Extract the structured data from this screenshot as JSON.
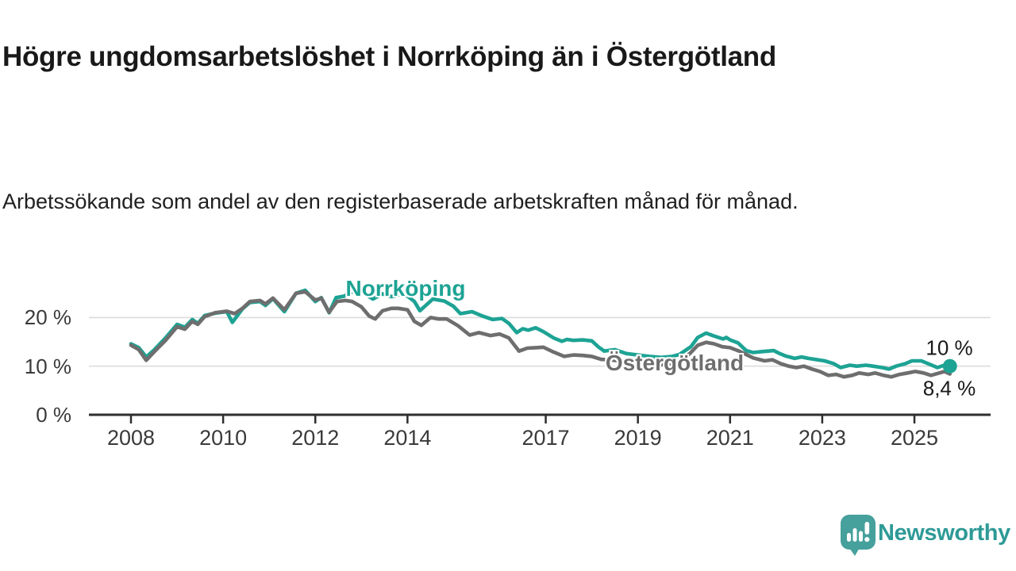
{
  "header": {
    "title": "Högre ungdomsarbetslöshet i Norrköping än i Östergötland",
    "subtitle": "Arbetssökande som andel av den registerbaserade arbetskraften månad för månad."
  },
  "chart_data": {
    "type": "line",
    "unit": "%",
    "grid_on": true,
    "legend_position": "inline-labels",
    "x_axis": {
      "ticks": [
        2008,
        2010,
        2012,
        2014,
        2017,
        2019,
        2021,
        2023,
        2025
      ],
      "range": [
        2008.0,
        2025.77
      ]
    },
    "y_axis": {
      "ticks": [
        {
          "value": 0,
          "label": "0 %"
        },
        {
          "value": 10,
          "label": "10 %"
        },
        {
          "value": 20,
          "label": "20 %"
        }
      ],
      "gridlines": [
        10,
        20
      ],
      "range": [
        0,
        27
      ]
    },
    "colors": {
      "norrkoping": "#1DA394",
      "ostergotland": "#6E6E6E",
      "gridline": "#DCDCDC",
      "axis": "#2E2E2E"
    },
    "series": [
      {
        "name": "Norrköping",
        "color": "#1DA394",
        "end_label": "10 %",
        "latest_value_pct": 10.0,
        "points": [
          [
            2008.0,
            14.6
          ],
          [
            2008.17,
            13.8
          ],
          [
            2008.33,
            11.9
          ],
          [
            2008.5,
            13.3
          ],
          [
            2008.75,
            15.8
          ],
          [
            2009.0,
            18.6
          ],
          [
            2009.17,
            18.0
          ],
          [
            2009.33,
            19.6
          ],
          [
            2009.45,
            18.8
          ],
          [
            2009.6,
            20.4
          ],
          [
            2009.83,
            20.9
          ],
          [
            2010.08,
            21.2
          ],
          [
            2010.2,
            19.0
          ],
          [
            2010.42,
            21.8
          ],
          [
            2010.58,
            23.1
          ],
          [
            2010.8,
            23.3
          ],
          [
            2010.92,
            22.5
          ],
          [
            2011.08,
            23.9
          ],
          [
            2011.33,
            21.2
          ],
          [
            2011.58,
            25.0
          ],
          [
            2011.78,
            25.6
          ],
          [
            2012.0,
            23.3
          ],
          [
            2012.13,
            24.1
          ],
          [
            2012.3,
            21.0
          ],
          [
            2012.45,
            24.1
          ],
          [
            2012.63,
            24.4
          ],
          [
            2012.9,
            25.8
          ],
          [
            2013.05,
            25.0
          ],
          [
            2013.25,
            23.8
          ],
          [
            2013.45,
            24.9
          ],
          [
            2013.65,
            24.3
          ],
          [
            2013.85,
            24.7
          ],
          [
            2014.0,
            24.4
          ],
          [
            2014.15,
            23.3
          ],
          [
            2014.27,
            21.4
          ],
          [
            2014.55,
            23.8
          ],
          [
            2014.8,
            23.4
          ],
          [
            2015.0,
            22.3
          ],
          [
            2015.15,
            20.8
          ],
          [
            2015.4,
            21.2
          ],
          [
            2015.6,
            20.4
          ],
          [
            2015.85,
            19.6
          ],
          [
            2016.05,
            19.8
          ],
          [
            2016.2,
            18.8
          ],
          [
            2016.37,
            16.9
          ],
          [
            2016.5,
            17.7
          ],
          [
            2016.62,
            17.4
          ],
          [
            2016.78,
            17.9
          ],
          [
            2016.95,
            17.1
          ],
          [
            2017.17,
            15.8
          ],
          [
            2017.35,
            15.1
          ],
          [
            2017.46,
            15.5
          ],
          [
            2017.6,
            15.3
          ],
          [
            2017.8,
            15.4
          ],
          [
            2018.0,
            15.2
          ],
          [
            2018.15,
            13.9
          ],
          [
            2018.27,
            13.1
          ],
          [
            2018.5,
            13.4
          ],
          [
            2018.75,
            12.6
          ],
          [
            2019.0,
            12.3
          ],
          [
            2019.25,
            12.0
          ],
          [
            2019.5,
            11.8
          ],
          [
            2019.75,
            12.0
          ],
          [
            2019.9,
            12.4
          ],
          [
            2020.15,
            14.0
          ],
          [
            2020.3,
            15.9
          ],
          [
            2020.48,
            16.8
          ],
          [
            2020.65,
            16.2
          ],
          [
            2020.85,
            15.6
          ],
          [
            2020.92,
            15.9
          ],
          [
            2021.0,
            15.4
          ],
          [
            2021.17,
            14.8
          ],
          [
            2021.35,
            13.2
          ],
          [
            2021.5,
            12.8
          ],
          [
            2021.7,
            13.0
          ],
          [
            2021.95,
            13.2
          ],
          [
            2022.05,
            12.7
          ],
          [
            2022.2,
            12.1
          ],
          [
            2022.4,
            11.6
          ],
          [
            2022.55,
            11.9
          ],
          [
            2022.7,
            11.6
          ],
          [
            2022.9,
            11.3
          ],
          [
            2023.05,
            11.1
          ],
          [
            2023.25,
            10.5
          ],
          [
            2023.4,
            9.7
          ],
          [
            2023.6,
            10.2
          ],
          [
            2023.75,
            10.0
          ],
          [
            2023.95,
            10.2
          ],
          [
            2024.1,
            10.0
          ],
          [
            2024.3,
            9.7
          ],
          [
            2024.45,
            9.4
          ],
          [
            2024.6,
            10.0
          ],
          [
            2024.8,
            10.5
          ],
          [
            2024.95,
            11.1
          ],
          [
            2025.15,
            11.1
          ],
          [
            2025.3,
            10.5
          ],
          [
            2025.5,
            9.7
          ],
          [
            2025.62,
            10.1
          ],
          [
            2025.77,
            10.0
          ]
        ]
      },
      {
        "name": "Östergötland",
        "color": "#6E6E6E",
        "end_label": "8,4 %",
        "latest_value_pct": 8.4,
        "points": [
          [
            2008.0,
            14.3
          ],
          [
            2008.17,
            13.4
          ],
          [
            2008.33,
            11.2
          ],
          [
            2008.5,
            12.9
          ],
          [
            2008.75,
            15.3
          ],
          [
            2009.0,
            18.1
          ],
          [
            2009.17,
            17.6
          ],
          [
            2009.33,
            19.2
          ],
          [
            2009.45,
            18.6
          ],
          [
            2009.6,
            20.2
          ],
          [
            2009.83,
            21.0
          ],
          [
            2010.08,
            21.3
          ],
          [
            2010.25,
            20.8
          ],
          [
            2010.42,
            21.9
          ],
          [
            2010.58,
            23.3
          ],
          [
            2010.8,
            23.5
          ],
          [
            2010.92,
            22.8
          ],
          [
            2011.08,
            24.0
          ],
          [
            2011.33,
            21.6
          ],
          [
            2011.58,
            25.0
          ],
          [
            2011.78,
            25.3
          ],
          [
            2012.0,
            23.6
          ],
          [
            2012.13,
            24.0
          ],
          [
            2012.3,
            21.1
          ],
          [
            2012.47,
            23.3
          ],
          [
            2012.65,
            23.5
          ],
          [
            2012.8,
            23.3
          ],
          [
            2013.0,
            22.2
          ],
          [
            2013.17,
            20.3
          ],
          [
            2013.3,
            19.7
          ],
          [
            2013.46,
            21.4
          ],
          [
            2013.65,
            21.9
          ],
          [
            2013.8,
            21.9
          ],
          [
            2014.0,
            21.6
          ],
          [
            2014.15,
            19.2
          ],
          [
            2014.3,
            18.4
          ],
          [
            2014.5,
            20.0
          ],
          [
            2014.67,
            19.7
          ],
          [
            2014.85,
            19.7
          ],
          [
            2015.1,
            18.3
          ],
          [
            2015.35,
            16.4
          ],
          [
            2015.55,
            16.9
          ],
          [
            2015.8,
            16.3
          ],
          [
            2016.0,
            16.6
          ],
          [
            2016.2,
            15.8
          ],
          [
            2016.42,
            13.1
          ],
          [
            2016.6,
            13.7
          ],
          [
            2016.78,
            13.8
          ],
          [
            2016.95,
            13.9
          ],
          [
            2017.17,
            12.9
          ],
          [
            2017.4,
            12.0
          ],
          [
            2017.6,
            12.3
          ],
          [
            2017.8,
            12.2
          ],
          [
            2018.0,
            12.0
          ],
          [
            2018.2,
            11.4
          ],
          [
            2018.5,
            11.2
          ],
          [
            2018.75,
            10.8
          ],
          [
            2019.0,
            10.6
          ],
          [
            2019.3,
            10.4
          ],
          [
            2019.6,
            10.3
          ],
          [
            2019.9,
            10.8
          ],
          [
            2020.14,
            12.7
          ],
          [
            2020.3,
            14.3
          ],
          [
            2020.48,
            14.9
          ],
          [
            2020.65,
            14.6
          ],
          [
            2020.83,
            14.0
          ],
          [
            2021.0,
            13.8
          ],
          [
            2021.17,
            13.2
          ],
          [
            2021.35,
            12.4
          ],
          [
            2021.5,
            11.7
          ],
          [
            2021.75,
            11.1
          ],
          [
            2021.92,
            11.3
          ],
          [
            2022.1,
            10.5
          ],
          [
            2022.27,
            10.0
          ],
          [
            2022.44,
            9.7
          ],
          [
            2022.6,
            10.0
          ],
          [
            2022.78,
            9.4
          ],
          [
            2022.95,
            8.9
          ],
          [
            2023.13,
            8.1
          ],
          [
            2023.3,
            8.3
          ],
          [
            2023.47,
            7.8
          ],
          [
            2023.65,
            8.1
          ],
          [
            2023.8,
            8.6
          ],
          [
            2024.0,
            8.3
          ],
          [
            2024.15,
            8.6
          ],
          [
            2024.33,
            8.1
          ],
          [
            2024.5,
            7.8
          ],
          [
            2024.68,
            8.3
          ],
          [
            2024.85,
            8.6
          ],
          [
            2025.02,
            8.9
          ],
          [
            2025.2,
            8.6
          ],
          [
            2025.36,
            8.1
          ],
          [
            2025.54,
            8.6
          ],
          [
            2025.65,
            8.9
          ],
          [
            2025.77,
            8.4
          ]
        ]
      }
    ]
  },
  "branding": {
    "logo_text": "Newsworthy",
    "logo_box_color": "#46A09C",
    "logo_text_color": "#2E9A97"
  }
}
